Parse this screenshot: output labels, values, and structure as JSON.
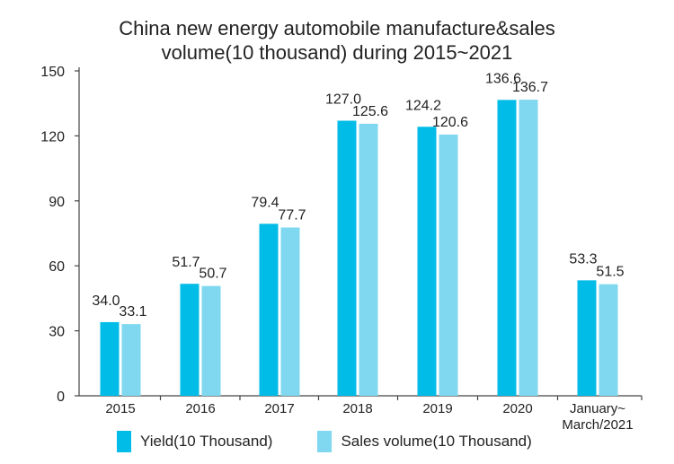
{
  "chart_data": {
    "type": "bar",
    "title_line1": "China new energy automobile manufacture&sales",
    "title_line2": "volume(10 thousand) during 2015~2021",
    "categories": [
      "2015",
      "2016",
      "2017",
      "2018",
      "2019",
      "2020",
      "January~\nMarch/2021"
    ],
    "series": [
      {
        "name": "Yield(10 Thousand)",
        "color": "#00bce7",
        "values": [
          34.0,
          51.7,
          79.4,
          127.0,
          124.2,
          136.6,
          53.3
        ]
      },
      {
        "name": "Sales volume(10 Thousand)",
        "color": "#7fd8ef",
        "values": [
          33.1,
          50.7,
          77.7,
          125.6,
          120.6,
          136.7,
          51.5
        ]
      }
    ],
    "ylim": [
      0,
      150
    ],
    "yticks": [
      0,
      30,
      60,
      90,
      120,
      150
    ],
    "grid": false,
    "legend_position": "bottom"
  }
}
